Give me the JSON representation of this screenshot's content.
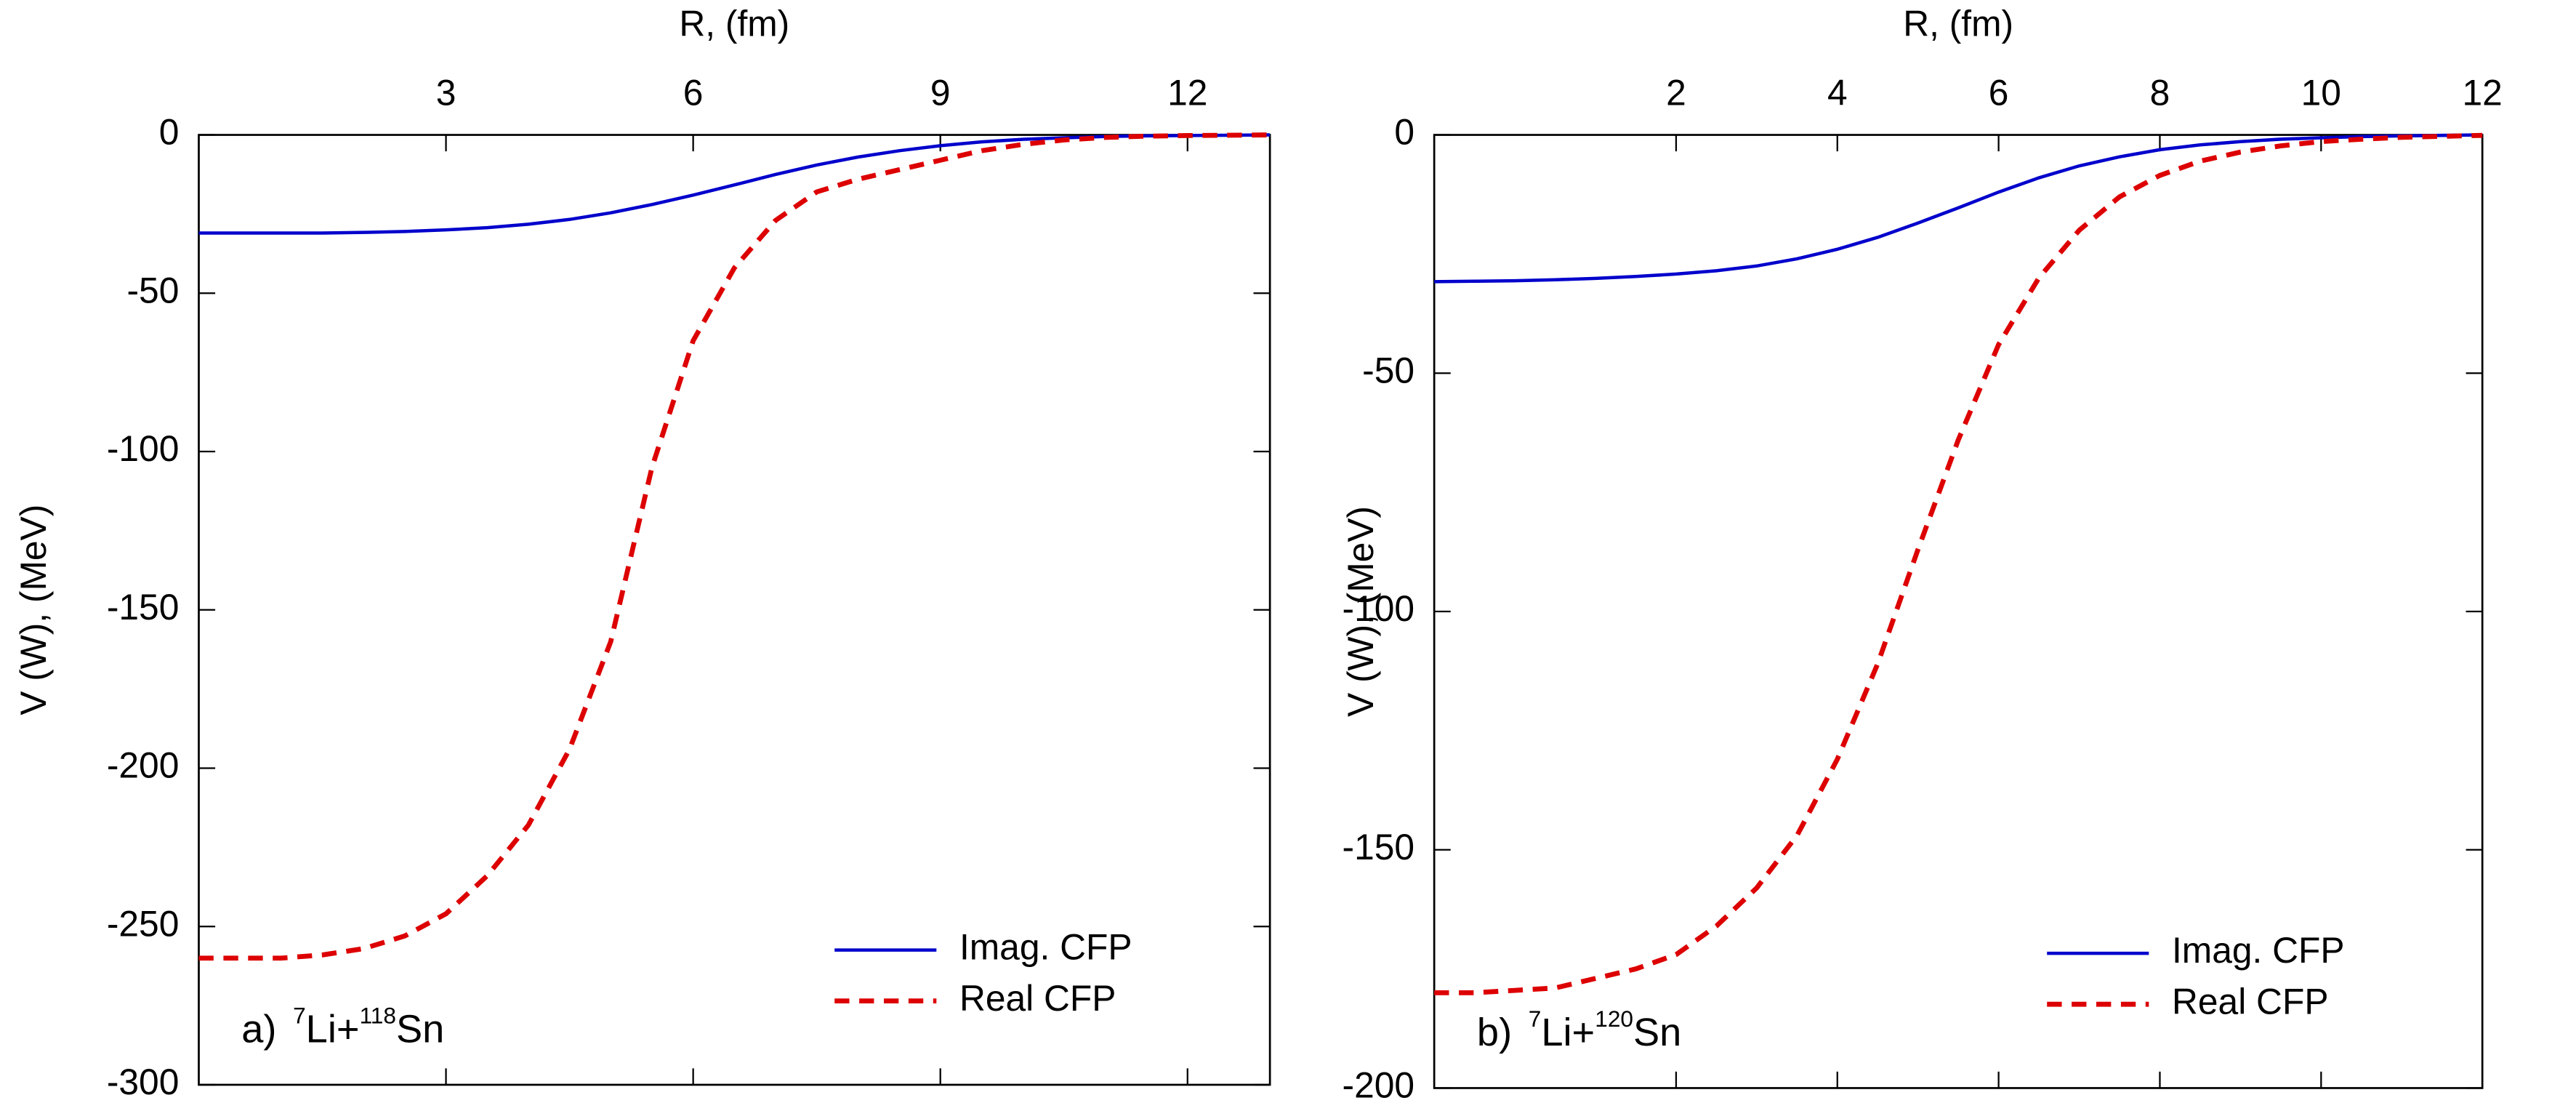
{
  "chart_data": [
    {
      "type": "line",
      "xlabel": "R, (fm)",
      "ylabel": "V (W), (MeV)",
      "annotation": [
        "a)",
        "7",
        "Li+",
        "118",
        "Sn"
      ],
      "xlim": [
        0,
        13
      ],
      "xticks": [
        3,
        6,
        9,
        12
      ],
      "ylim": [
        -300,
        0
      ],
      "yticks": [
        0,
        -50,
        -100,
        -150,
        -200,
        -250,
        -300
      ],
      "grid": false,
      "legend": "lower right",
      "x": [
        0,
        0.5,
        1,
        1.5,
        2,
        2.5,
        3,
        3.5,
        4,
        4.5,
        5,
        5.5,
        6,
        6.5,
        7,
        7.5,
        8,
        8.5,
        9,
        9.5,
        10,
        10.5,
        11,
        11.5,
        12,
        12.5,
        13
      ],
      "series": [
        {
          "name": "Imag. CFP",
          "color": "#0000cc",
          "dash": false,
          "values": [
            -31,
            -31,
            -31,
            -31,
            -30.8,
            -30.5,
            -30,
            -29.3,
            -28.2,
            -26.7,
            -24.6,
            -22,
            -19,
            -15.8,
            -12.5,
            -9.5,
            -7,
            -5,
            -3.4,
            -2.2,
            -1.4,
            -0.9,
            -0.5,
            -0.3,
            -0.2,
            -0.1,
            0
          ]
        },
        {
          "name": "Real CFP",
          "color": "#dd0000",
          "dash": true,
          "values": [
            -260,
            -260,
            -260,
            -259,
            -257,
            -253,
            -246,
            -234,
            -218,
            -194,
            -160,
            -105,
            -65,
            -42,
            -27,
            -18,
            -14,
            -11,
            -8,
            -5,
            -3,
            -1.6,
            -0.8,
            -0.4,
            -0.2,
            -0.1,
            0
          ]
        }
      ]
    },
    {
      "type": "line",
      "xlabel": "R, (fm)",
      "ylabel": "V (W), (MeV)",
      "annotation": [
        "b)",
        "7",
        "Li+",
        "120",
        "Sn"
      ],
      "xlim": [
        -1,
        12
      ],
      "xticks": [
        2,
        4,
        6,
        8,
        10,
        12
      ],
      "ylim": [
        -200,
        0
      ],
      "yticks": [
        0,
        -50,
        -100,
        -150,
        -200
      ],
      "grid": false,
      "legend": "lower right",
      "x": [
        -1,
        -0.5,
        0,
        0.5,
        1,
        1.5,
        2,
        2.5,
        3,
        3.5,
        4,
        4.5,
        5,
        5.5,
        6,
        6.5,
        7,
        7.5,
        8,
        8.5,
        9,
        9.5,
        10,
        10.5,
        11,
        11.5,
        12
      ],
      "series": [
        {
          "name": "Imag. CFP",
          "color": "#0000cc",
          "dash": false,
          "values": [
            -30.8,
            -30.7,
            -30.6,
            -30.4,
            -30.1,
            -29.7,
            -29.2,
            -28.5,
            -27.5,
            -26,
            -24,
            -21.5,
            -18.5,
            -15.3,
            -12,
            -9,
            -6.5,
            -4.6,
            -3.1,
            -2.1,
            -1.4,
            -0.9,
            -0.6,
            -0.35,
            -0.2,
            -0.1,
            0
          ]
        },
        {
          "name": "Real CFP",
          "color": "#dd0000",
          "dash": true,
          "values": [
            -180,
            -180,
            -179.5,
            -179,
            -177,
            -175,
            -172,
            -166,
            -158,
            -147,
            -131,
            -111,
            -87,
            -64,
            -44,
            -30,
            -20,
            -13,
            -8.5,
            -5.5,
            -3.6,
            -2.3,
            -1.4,
            -0.9,
            -0.5,
            -0.3,
            -0.1
          ]
        }
      ]
    }
  ]
}
